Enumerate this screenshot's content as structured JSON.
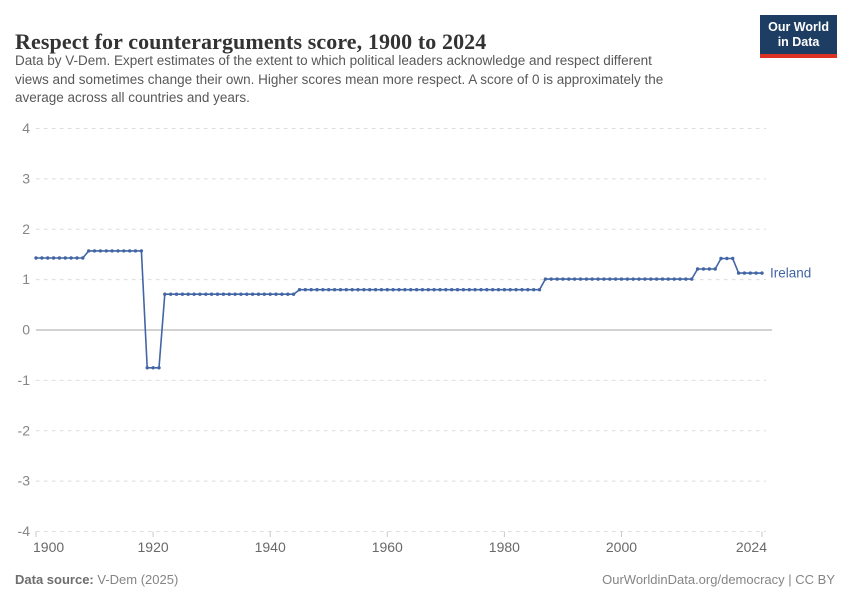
{
  "header": {
    "title": "Respect for counterarguments score, 1900 to 2024",
    "subtitle_lines": [
      "Data by V-Dem. Expert estimates of the extent to which political leaders acknowledge and respect different",
      "views and sometimes change their own. Higher scores mean more respect. A score of 0 is approximately the",
      "average across all countries and years."
    ],
    "logo": {
      "line1": "Our World",
      "line2": "in Data"
    }
  },
  "chart_data": {
    "type": "line",
    "title": "Respect for counterarguments score, 1900 to 2024",
    "xlabel": "",
    "ylabel": "",
    "xlim": [
      1900,
      2024
    ],
    "ylim": [
      -4,
      4
    ],
    "xticks": [
      1900,
      1920,
      1940,
      1960,
      1980,
      2000,
      2024
    ],
    "yticks": [
      -4,
      -3,
      -2,
      -1,
      0,
      1,
      2,
      3,
      4
    ],
    "grid": "dashed-horizontal",
    "legend_position": "line-end-label",
    "marker": "circle",
    "line_color": "#4265a5",
    "zero_line_color": "#a6a6a6",
    "grid_color": "#dcdcdc",
    "x_start": 1900,
    "x_step": 1,
    "series": [
      {
        "name": "Ireland",
        "values": [
          1.43,
          1.43,
          1.43,
          1.43,
          1.43,
          1.43,
          1.43,
          1.43,
          1.43,
          1.57,
          1.57,
          1.57,
          1.57,
          1.57,
          1.57,
          1.57,
          1.57,
          1.57,
          1.57,
          -0.75,
          -0.75,
          -0.75,
          0.71,
          0.71,
          0.71,
          0.71,
          0.71,
          0.71,
          0.71,
          0.71,
          0.71,
          0.71,
          0.71,
          0.71,
          0.71,
          0.71,
          0.71,
          0.71,
          0.71,
          0.71,
          0.71,
          0.71,
          0.71,
          0.71,
          0.71,
          0.8,
          0.8,
          0.8,
          0.8,
          0.8,
          0.8,
          0.8,
          0.8,
          0.8,
          0.8,
          0.8,
          0.8,
          0.8,
          0.8,
          0.8,
          0.8,
          0.8,
          0.8,
          0.8,
          0.8,
          0.8,
          0.8,
          0.8,
          0.8,
          0.8,
          0.8,
          0.8,
          0.8,
          0.8,
          0.8,
          0.8,
          0.8,
          0.8,
          0.8,
          0.8,
          0.8,
          0.8,
          0.8,
          0.8,
          0.8,
          0.8,
          0.8,
          1.01,
          1.01,
          1.01,
          1.01,
          1.01,
          1.01,
          1.01,
          1.01,
          1.01,
          1.01,
          1.01,
          1.01,
          1.01,
          1.01,
          1.01,
          1.01,
          1.01,
          1.01,
          1.01,
          1.01,
          1.01,
          1.01,
          1.01,
          1.01,
          1.01,
          1.01,
          1.21,
          1.21,
          1.21,
          1.21,
          1.42,
          1.42,
          1.42,
          1.13,
          1.13,
          1.13,
          1.13,
          1.13
        ]
      }
    ]
  },
  "footer": {
    "source_label": "Data source:",
    "source_value": " V-Dem (2025)",
    "right_text": "OurWorldinData.org/democracy | CC BY"
  }
}
